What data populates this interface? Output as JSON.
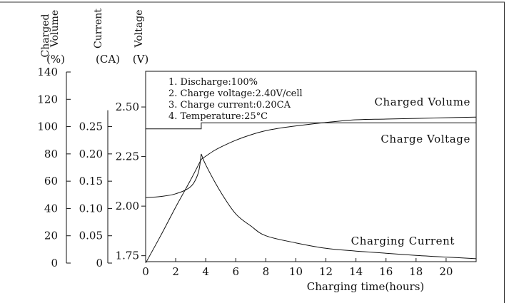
{
  "chart_data": {
    "type": "line",
    "title": "",
    "xlabel": "Charging time(hours)",
    "x_ticks": [
      0,
      2,
      4,
      6,
      8,
      10,
      12,
      14,
      16,
      18,
      20
    ],
    "xlim": [
      0,
      22
    ],
    "axes": [
      {
        "id": "volume",
        "label_lines": [
          "Charged",
          "Volume"
        ],
        "unit": "(%)",
        "ticks": [
          "0",
          "20",
          "40",
          "60",
          "80",
          "100",
          "120",
          "140"
        ],
        "tick_values": [
          0,
          20,
          40,
          60,
          80,
          100,
          120,
          140
        ]
      },
      {
        "id": "current",
        "label_lines": [
          "Current"
        ],
        "unit": "(CA)",
        "ticks": [
          "0",
          "0.05",
          "0.10",
          "0.15",
          "0.20",
          "0.25"
        ],
        "tick_values": [
          0,
          0.05,
          0.1,
          0.15,
          0.2,
          0.25
        ]
      },
      {
        "id": "voltage",
        "label_lines": [
          "Voltage"
        ],
        "unit": "(V)",
        "ticks": [
          "1.75",
          "2.00",
          "2.25",
          "2.50"
        ],
        "tick_values": [
          1.75,
          2.0,
          2.25,
          2.5
        ],
        "range": [
          1.72,
          2.68
        ]
      }
    ],
    "notes": [
      "1. Discharge:100%",
      "2. Charge voltage:2.40V/cell",
      "3. Charge current:0.20CA",
      "4. Temperature:25°C"
    ],
    "series": [
      {
        "name": "Charged Volume",
        "axis": "volume",
        "x": [
          0,
          1,
          2,
          3,
          3.7,
          4.5,
          5,
          6,
          7,
          8,
          9,
          10,
          12,
          14,
          16,
          18,
          20,
          22
        ],
        "y": [
          0,
          20,
          41,
          61,
          76,
          82,
          85,
          90,
          94,
          97,
          99,
          100.5,
          103,
          105,
          105.5,
          106,
          106.5,
          107
        ]
      },
      {
        "name": "Charge Voltage",
        "axis": "voltage",
        "x": [
          0,
          3.7,
          3.7,
          22
        ],
        "y": [
          2.39,
          2.39,
          2.42,
          2.42
        ]
      },
      {
        "name": "Charging Current",
        "axis": "current",
        "x": [
          0,
          1,
          2,
          3,
          3.5,
          3.7,
          4,
          5,
          6,
          7,
          8,
          10,
          12,
          14,
          16,
          18,
          20,
          22
        ],
        "y": [
          0.12,
          0.122,
          0.127,
          0.14,
          0.165,
          0.2,
          0.18,
          0.13,
          0.09,
          0.068,
          0.05,
          0.037,
          0.027,
          0.022,
          0.018,
          0.014,
          0.011,
          0.008
        ]
      }
    ],
    "series_labels": [
      "Charged Volume",
      "Charge Voltage",
      "Charging Current"
    ],
    "grid": false
  }
}
